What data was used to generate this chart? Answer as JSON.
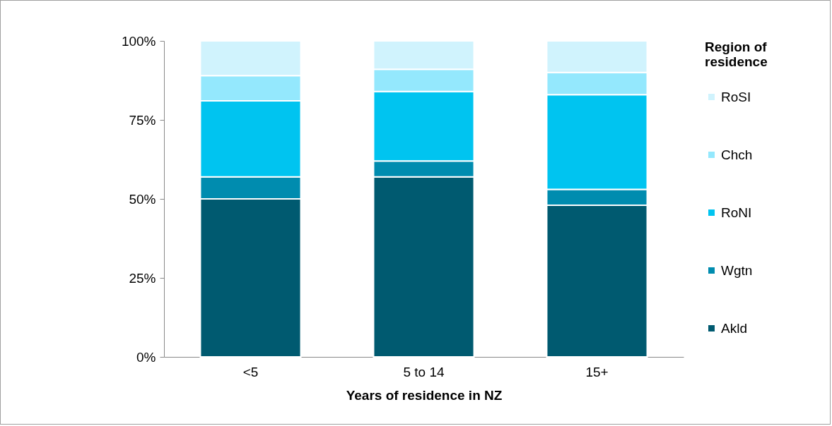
{
  "chart_data": {
    "type": "bar",
    "stacked": true,
    "xlabel": "Years of residence in NZ",
    "legend_title": "Region of residence",
    "legend": "right",
    "grid": false,
    "categories": [
      "<5",
      "5 to 14",
      "15+"
    ],
    "ylim": [
      0,
      100
    ],
    "yticks": [
      {
        "value": 0,
        "label": "0%"
      },
      {
        "value": 25,
        "label": "25%"
      },
      {
        "value": 50,
        "label": "50%"
      },
      {
        "value": 75,
        "label": "75%"
      },
      {
        "value": 100,
        "label": "100%"
      }
    ],
    "series": [
      {
        "name": "Akld",
        "color": "#005a70",
        "values": [
          50,
          57,
          48
        ]
      },
      {
        "name": "Wgtn",
        "color": "#008caf",
        "values": [
          7,
          5,
          5
        ]
      },
      {
        "name": "RoNI",
        "color": "#00c4f0",
        "values": [
          24,
          22,
          30
        ]
      },
      {
        "name": "Chch",
        "color": "#94e8fd",
        "values": [
          8,
          7,
          7
        ]
      },
      {
        "name": "RoSI",
        "color": "#d0f3fd",
        "values": [
          11,
          9,
          10
        ]
      }
    ]
  }
}
